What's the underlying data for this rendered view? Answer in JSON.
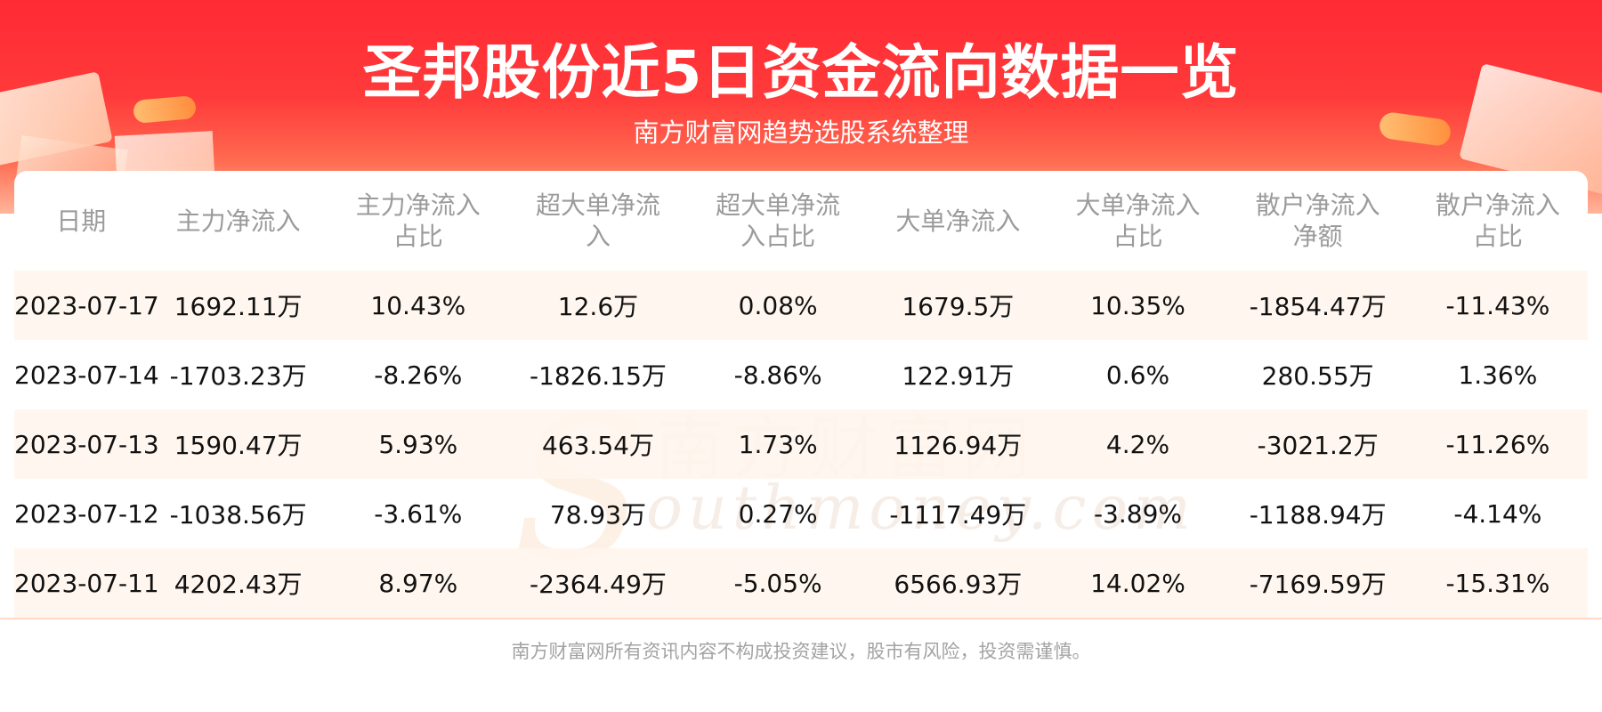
{
  "header": {
    "title": "圣邦股份近5日资金流向数据一览",
    "subtitle": "南方财富网趋势选股系统整理"
  },
  "watermark": {
    "chinese": "南方财富网",
    "english": "outhmoney.com"
  },
  "chart_data": {
    "type": "table",
    "columns": [
      "日期",
      "主力净流入",
      "主力净流入占比",
      "超大单净流入",
      "超大单净流入占比",
      "大单净流入",
      "大单净流入占比",
      "散户净流入净额",
      "散户净流入占比"
    ],
    "rows": [
      [
        "2023-07-17",
        "1692.11万",
        "10.43%",
        "12.6万",
        "0.08%",
        "1679.5万",
        "10.35%",
        "-1854.47万",
        "-11.43%"
      ],
      [
        "2023-07-14",
        "-1703.23万",
        "-8.26%",
        "-1826.15万",
        "-8.86%",
        "122.91万",
        "0.6%",
        "280.55万",
        "1.36%"
      ],
      [
        "2023-07-13",
        "1590.47万",
        "5.93%",
        "463.54万",
        "1.73%",
        "1126.94万",
        "4.2%",
        "-3021.2万",
        "-11.26%"
      ],
      [
        "2023-07-12",
        "-1038.56万",
        "-3.61%",
        "78.93万",
        "0.27%",
        "-1117.49万",
        "-3.89%",
        "-1188.94万",
        "-4.14%"
      ],
      [
        "2023-07-11",
        "4202.43万",
        "8.97%",
        "-2364.49万",
        "-5.05%",
        "6566.93万",
        "14.02%",
        "-7169.59万",
        "-15.31%"
      ]
    ]
  },
  "footer": {
    "disclaimer": "南方财富网所有资讯内容不构成投资建议，股市有风险，投资需谨慎。"
  },
  "colors": {
    "header_red": "#ff2a35",
    "row_highlight": "#fff6ec",
    "header_text": "#9b9b9b",
    "cell_text": "#111111",
    "footer_text": "#a3a3a3"
  }
}
